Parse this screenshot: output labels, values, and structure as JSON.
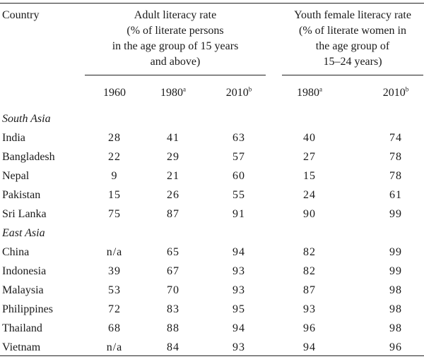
{
  "table": {
    "headers": {
      "country": "Country",
      "adult": [
        "Adult literacy rate",
        "(% of literate persons",
        "in the age group of 15 years",
        "and above)"
      ],
      "youth": [
        "Youth female literacy rate",
        "(% of literate women in",
        "the age group of",
        "15–24 years)"
      ]
    },
    "years": [
      {
        "year": "1960",
        "note": ""
      },
      {
        "year": "1980",
        "note": "a"
      },
      {
        "year": "2010",
        "note": "b"
      },
      {
        "year": "1980",
        "note": "a"
      },
      {
        "year": "2010",
        "note": "b"
      }
    ],
    "rows": [
      {
        "type": "section",
        "name": "South Asia"
      },
      {
        "type": "data",
        "name": "India",
        "values": [
          "28",
          "41",
          "63",
          "40",
          "74"
        ]
      },
      {
        "type": "data",
        "name": "Bangladesh",
        "values": [
          "22",
          "29",
          "57",
          "27",
          "78"
        ]
      },
      {
        "type": "data",
        "name": "Nepal",
        "values": [
          "9",
          "21",
          "60",
          "15",
          "78"
        ]
      },
      {
        "type": "data",
        "name": "Pakistan",
        "values": [
          "15",
          "26",
          "55",
          "24",
          "61"
        ]
      },
      {
        "type": "data",
        "name": "Sri Lanka",
        "values": [
          "75",
          "87",
          "91",
          "90",
          "99"
        ]
      },
      {
        "type": "section",
        "name": "East Asia"
      },
      {
        "type": "data",
        "name": "China",
        "values": [
          "n/a",
          "65",
          "94",
          "82",
          "99"
        ]
      },
      {
        "type": "data",
        "name": "Indonesia",
        "values": [
          "39",
          "67",
          "93",
          "82",
          "99"
        ]
      },
      {
        "type": "data",
        "name": "Malaysia",
        "values": [
          "53",
          "70",
          "93",
          "87",
          "98"
        ]
      },
      {
        "type": "data",
        "name": "Philippines",
        "values": [
          "72",
          "83",
          "95",
          "93",
          "98"
        ]
      },
      {
        "type": "data",
        "name": "Thailand",
        "values": [
          "68",
          "88",
          "94",
          "96",
          "98"
        ]
      },
      {
        "type": "data",
        "name": "Vietnam",
        "values": [
          "n/a",
          "84",
          "93",
          "94",
          "96"
        ]
      }
    ]
  }
}
